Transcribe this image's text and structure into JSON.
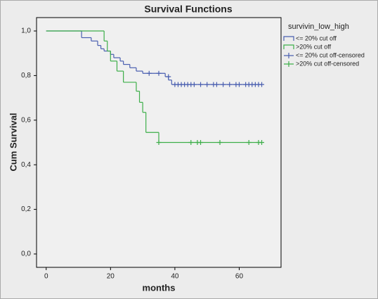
{
  "chart_data": {
    "type": "line",
    "title": "Survival Functions",
    "xlabel": "months",
    "ylabel": "Cum Survival",
    "legend_title": "survivin_low_high",
    "legend_position": "right",
    "xlim": [
      -3,
      73
    ],
    "ylim": [
      -0.06,
      1.06
    ],
    "xticks": [
      0,
      20,
      40,
      60
    ],
    "yticks": [
      {
        "value": 0.0,
        "label": "0,0"
      },
      {
        "value": 0.2,
        "label": "0,2"
      },
      {
        "value": 0.4,
        "label": "0,4"
      },
      {
        "value": 0.6,
        "label": "0,6"
      },
      {
        "value": 0.8,
        "label": "0,8"
      },
      {
        "value": 1.0,
        "label": "1,0"
      }
    ],
    "series": [
      {
        "name": "<= 20% cut off",
        "color": "#4a5fb0",
        "drawstyle": "steps-post",
        "x": [
          0,
          11,
          14,
          16,
          17,
          18,
          20,
          21,
          23,
          24,
          26,
          28,
          30,
          37,
          38,
          39,
          67
        ],
        "values": [
          1.0,
          0.97,
          0.955,
          0.935,
          0.92,
          0.91,
          0.895,
          0.88,
          0.865,
          0.85,
          0.835,
          0.82,
          0.81,
          0.795,
          0.78,
          0.76,
          0.76
        ]
      },
      {
        "name": ">20% cut off",
        "color": "#3dae49",
        "drawstyle": "steps-post",
        "x": [
          0,
          18,
          19,
          20,
          22,
          24,
          28,
          29,
          30,
          31,
          35,
          67
        ],
        "values": [
          1.0,
          0.955,
          0.91,
          0.865,
          0.82,
          0.77,
          0.73,
          0.68,
          0.635,
          0.545,
          0.5,
          0.5
        ]
      },
      {
        "name": "<= 20% cut off-censored",
        "color": "#4a5fb0",
        "marker": "+",
        "x": [
          32,
          35,
          38,
          40,
          41,
          42,
          43,
          44,
          45,
          46,
          48,
          50,
          52,
          53,
          55,
          57,
          59,
          60,
          62,
          63,
          64,
          65,
          66,
          67
        ],
        "values": [
          0.81,
          0.81,
          0.795,
          0.76,
          0.76,
          0.76,
          0.76,
          0.76,
          0.76,
          0.76,
          0.76,
          0.76,
          0.76,
          0.76,
          0.76,
          0.76,
          0.76,
          0.76,
          0.76,
          0.76,
          0.76,
          0.76,
          0.76,
          0.76
        ]
      },
      {
        "name": ">20% cut off-censored",
        "color": "#3dae49",
        "marker": "+",
        "x": [
          35,
          45,
          47,
          48,
          54,
          63,
          66,
          67
        ],
        "values": [
          0.5,
          0.5,
          0.5,
          0.5,
          0.5,
          0.5,
          0.5,
          0.5
        ]
      }
    ]
  }
}
